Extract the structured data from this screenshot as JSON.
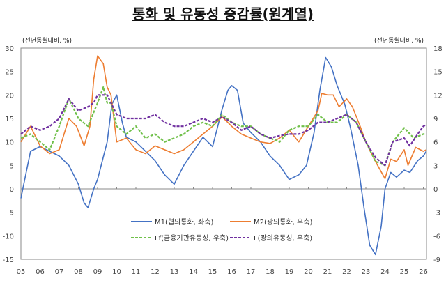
{
  "chart_data": {
    "type": "line",
    "title": "통화 및 유동성 증감률(원계열)",
    "left_axis": {
      "label": "(전년동월대비, %)",
      "range": [
        -15,
        30
      ],
      "ticks": [
        30,
        25,
        20,
        15,
        10,
        5,
        0,
        -5,
        -10,
        -15
      ]
    },
    "right_axis": {
      "label": "(전년동월대비, %)",
      "range": [
        -9,
        18
      ],
      "ticks": [
        18,
        15,
        12,
        9,
        6,
        3,
        0,
        -3,
        -6,
        -9
      ]
    },
    "x_ticks": [
      "05",
      "06",
      "07",
      "08",
      "09",
      "10",
      "11",
      "12",
      "13",
      "14",
      "15",
      "16",
      "17",
      "18",
      "19",
      "20",
      "21",
      "22",
      "23",
      "24",
      "25",
      "26"
    ],
    "x_range": [
      2005,
      2026.2
    ],
    "grid": false,
    "legend_position": "bottom-center",
    "series": [
      {
        "name": "M1(협의통화, 좌축)",
        "axis": "left",
        "color": "#4472C4",
        "style": "solid",
        "points": [
          [
            2005,
            -2
          ],
          [
            2005.2,
            2
          ],
          [
            2005.5,
            8
          ],
          [
            2006,
            9
          ],
          [
            2006.5,
            8
          ],
          [
            2007,
            7
          ],
          [
            2007.5,
            5
          ],
          [
            2008,
            1
          ],
          [
            2008.3,
            -3
          ],
          [
            2008.5,
            -4
          ],
          [
            2008.8,
            0
          ],
          [
            2009,
            2
          ],
          [
            2009.5,
            10
          ],
          [
            2009.75,
            18
          ],
          [
            2010,
            20
          ],
          [
            2010.3,
            14
          ],
          [
            2010.5,
            11
          ],
          [
            2011,
            10
          ],
          [
            2011.5,
            8
          ],
          [
            2012,
            6
          ],
          [
            2012.5,
            3
          ],
          [
            2013,
            1
          ],
          [
            2013.5,
            5
          ],
          [
            2014,
            8
          ],
          [
            2014.5,
            11
          ],
          [
            2015,
            9
          ],
          [
            2015.5,
            17
          ],
          [
            2015.8,
            21
          ],
          [
            2016,
            22
          ],
          [
            2016.3,
            21
          ],
          [
            2016.6,
            14
          ],
          [
            2017,
            12
          ],
          [
            2017.5,
            10
          ],
          [
            2018,
            7
          ],
          [
            2018.5,
            5
          ],
          [
            2019,
            2
          ],
          [
            2019.5,
            3
          ],
          [
            2019.9,
            5
          ],
          [
            2020.3,
            12
          ],
          [
            2020.6,
            21
          ],
          [
            2020.9,
            28
          ],
          [
            2021.2,
            26
          ],
          [
            2021.5,
            22
          ],
          [
            2021.9,
            18
          ],
          [
            2022.2,
            13
          ],
          [
            2022.6,
            5
          ],
          [
            2022.9,
            -4
          ],
          [
            2023.2,
            -12
          ],
          [
            2023.5,
            -14
          ],
          [
            2023.8,
            -8
          ],
          [
            2024,
            0
          ],
          [
            2024.3,
            3.5
          ],
          [
            2024.6,
            2.5
          ],
          [
            2025,
            4
          ],
          [
            2025.3,
            3.5
          ],
          [
            2025.7,
            6
          ],
          [
            2026,
            7
          ],
          [
            2026.15,
            8
          ]
        ]
      },
      {
        "name": "M2(광의통화, 우축)",
        "axis": "right",
        "color": "#ED7D31",
        "style": "solid",
        "points": [
          [
            2005,
            6
          ],
          [
            2005.5,
            8
          ],
          [
            2006,
            5.5
          ],
          [
            2006.5,
            4.5
          ],
          [
            2007,
            5
          ],
          [
            2007.5,
            9
          ],
          [
            2007.9,
            8
          ],
          [
            2008.3,
            5.5
          ],
          [
            2008.6,
            8
          ],
          [
            2008.8,
            14
          ],
          [
            2009,
            17
          ],
          [
            2009.3,
            16
          ],
          [
            2009.5,
            13
          ],
          [
            2009.7,
            12
          ],
          [
            2010,
            6
          ],
          [
            2010.5,
            6.5
          ],
          [
            2011,
            5
          ],
          [
            2011.5,
            4.5
          ],
          [
            2012,
            5.5
          ],
          [
            2012.5,
            5
          ],
          [
            2013,
            4.5
          ],
          [
            2013.5,
            5
          ],
          [
            2014,
            6
          ],
          [
            2014.5,
            7
          ],
          [
            2015,
            8
          ],
          [
            2015.5,
            9.2
          ],
          [
            2016,
            8
          ],
          [
            2016.5,
            7
          ],
          [
            2017,
            6.5
          ],
          [
            2017.5,
            6
          ],
          [
            2018,
            5.8
          ],
          [
            2018.5,
            6.5
          ],
          [
            2019,
            7.5
          ],
          [
            2019.5,
            6
          ],
          [
            2020,
            8
          ],
          [
            2020.5,
            10
          ],
          [
            2020.7,
            12.2
          ],
          [
            2021,
            12
          ],
          [
            2021.3,
            12
          ],
          [
            2021.6,
            10.5
          ],
          [
            2022,
            11.5
          ],
          [
            2022.3,
            10.5
          ],
          [
            2022.7,
            8
          ],
          [
            2023,
            6
          ],
          [
            2023.5,
            3.5
          ],
          [
            2024,
            1.3
          ],
          [
            2024.3,
            3.8
          ],
          [
            2024.6,
            3.5
          ],
          [
            2025,
            5
          ],
          [
            2025.2,
            3
          ],
          [
            2025.6,
            5.3
          ],
          [
            2026,
            4.8
          ],
          [
            2026.15,
            5
          ]
        ]
      },
      {
        "name": "Lf(금융기관유동성, 우축)",
        "axis": "right",
        "color": "#70C04A",
        "style": "dashed",
        "points": [
          [
            2005,
            6.5
          ],
          [
            2005.5,
            7
          ],
          [
            2006,
            6
          ],
          [
            2006.5,
            5
          ],
          [
            2007,
            8
          ],
          [
            2007.5,
            11.5
          ],
          [
            2008,
            9
          ],
          [
            2008.5,
            8
          ],
          [
            2009,
            11
          ],
          [
            2009.3,
            13
          ],
          [
            2009.5,
            11
          ],
          [
            2009.7,
            11
          ],
          [
            2010,
            8
          ],
          [
            2010.5,
            7
          ],
          [
            2011,
            8
          ],
          [
            2011.5,
            6.5
          ],
          [
            2012,
            7
          ],
          [
            2012.5,
            6
          ],
          [
            2013,
            6.5
          ],
          [
            2013.5,
            7
          ],
          [
            2014,
            8
          ],
          [
            2014.5,
            8.5
          ],
          [
            2015,
            8
          ],
          [
            2015.5,
            9.5
          ],
          [
            2016,
            8.5
          ],
          [
            2016.5,
            8
          ],
          [
            2017,
            8
          ],
          [
            2017.5,
            7
          ],
          [
            2018,
            6.5
          ],
          [
            2018.5,
            6
          ],
          [
            2019,
            7.5
          ],
          [
            2019.5,
            8
          ],
          [
            2020,
            8
          ],
          [
            2020.5,
            9.5
          ],
          [
            2021,
            8.5
          ],
          [
            2021.5,
            8.5
          ],
          [
            2022,
            9.5
          ],
          [
            2022.5,
            8.5
          ],
          [
            2023,
            6
          ],
          [
            2023.5,
            3.5
          ],
          [
            2024,
            3
          ],
          [
            2024.4,
            6
          ],
          [
            2025,
            7.8
          ],
          [
            2025.5,
            6.5
          ],
          [
            2026,
            7
          ],
          [
            2026.15,
            7
          ]
        ]
      },
      {
        "name": "L(광의유동성, 우축)",
        "axis": "right",
        "color": "#7030A0",
        "style": "dashed",
        "points": [
          [
            2005,
            7
          ],
          [
            2005.5,
            8
          ],
          [
            2006,
            7.5
          ],
          [
            2006.5,
            8
          ],
          [
            2007,
            9
          ],
          [
            2007.5,
            11.5
          ],
          [
            2008,
            10
          ],
          [
            2008.5,
            10.5
          ],
          [
            2008.8,
            11
          ],
          [
            2009,
            12
          ],
          [
            2009.5,
            12
          ],
          [
            2010,
            9.5
          ],
          [
            2010.5,
            9
          ],
          [
            2011,
            9
          ],
          [
            2011.5,
            9
          ],
          [
            2012,
            9.5
          ],
          [
            2012.5,
            8.5
          ],
          [
            2013,
            8
          ],
          [
            2013.5,
            8
          ],
          [
            2014,
            8.5
          ],
          [
            2014.5,
            9
          ],
          [
            2015,
            8.5
          ],
          [
            2015.5,
            9.2
          ],
          [
            2016,
            8.5
          ],
          [
            2016.5,
            7.5
          ],
          [
            2017,
            8
          ],
          [
            2017.5,
            7
          ],
          [
            2018,
            6.5
          ],
          [
            2018.5,
            6.8
          ],
          [
            2019,
            7
          ],
          [
            2019.5,
            7
          ],
          [
            2020,
            7.5
          ],
          [
            2020.5,
            8.5
          ],
          [
            2021,
            8.5
          ],
          [
            2021.5,
            9
          ],
          [
            2022,
            9.5
          ],
          [
            2022.5,
            8.5
          ],
          [
            2023,
            6
          ],
          [
            2023.5,
            4
          ],
          [
            2024,
            3
          ],
          [
            2024.4,
            6
          ],
          [
            2025,
            6.5
          ],
          [
            2025.3,
            5.5
          ],
          [
            2025.7,
            7
          ],
          [
            2026,
            8
          ],
          [
            2026.15,
            8.2
          ]
        ]
      }
    ]
  }
}
